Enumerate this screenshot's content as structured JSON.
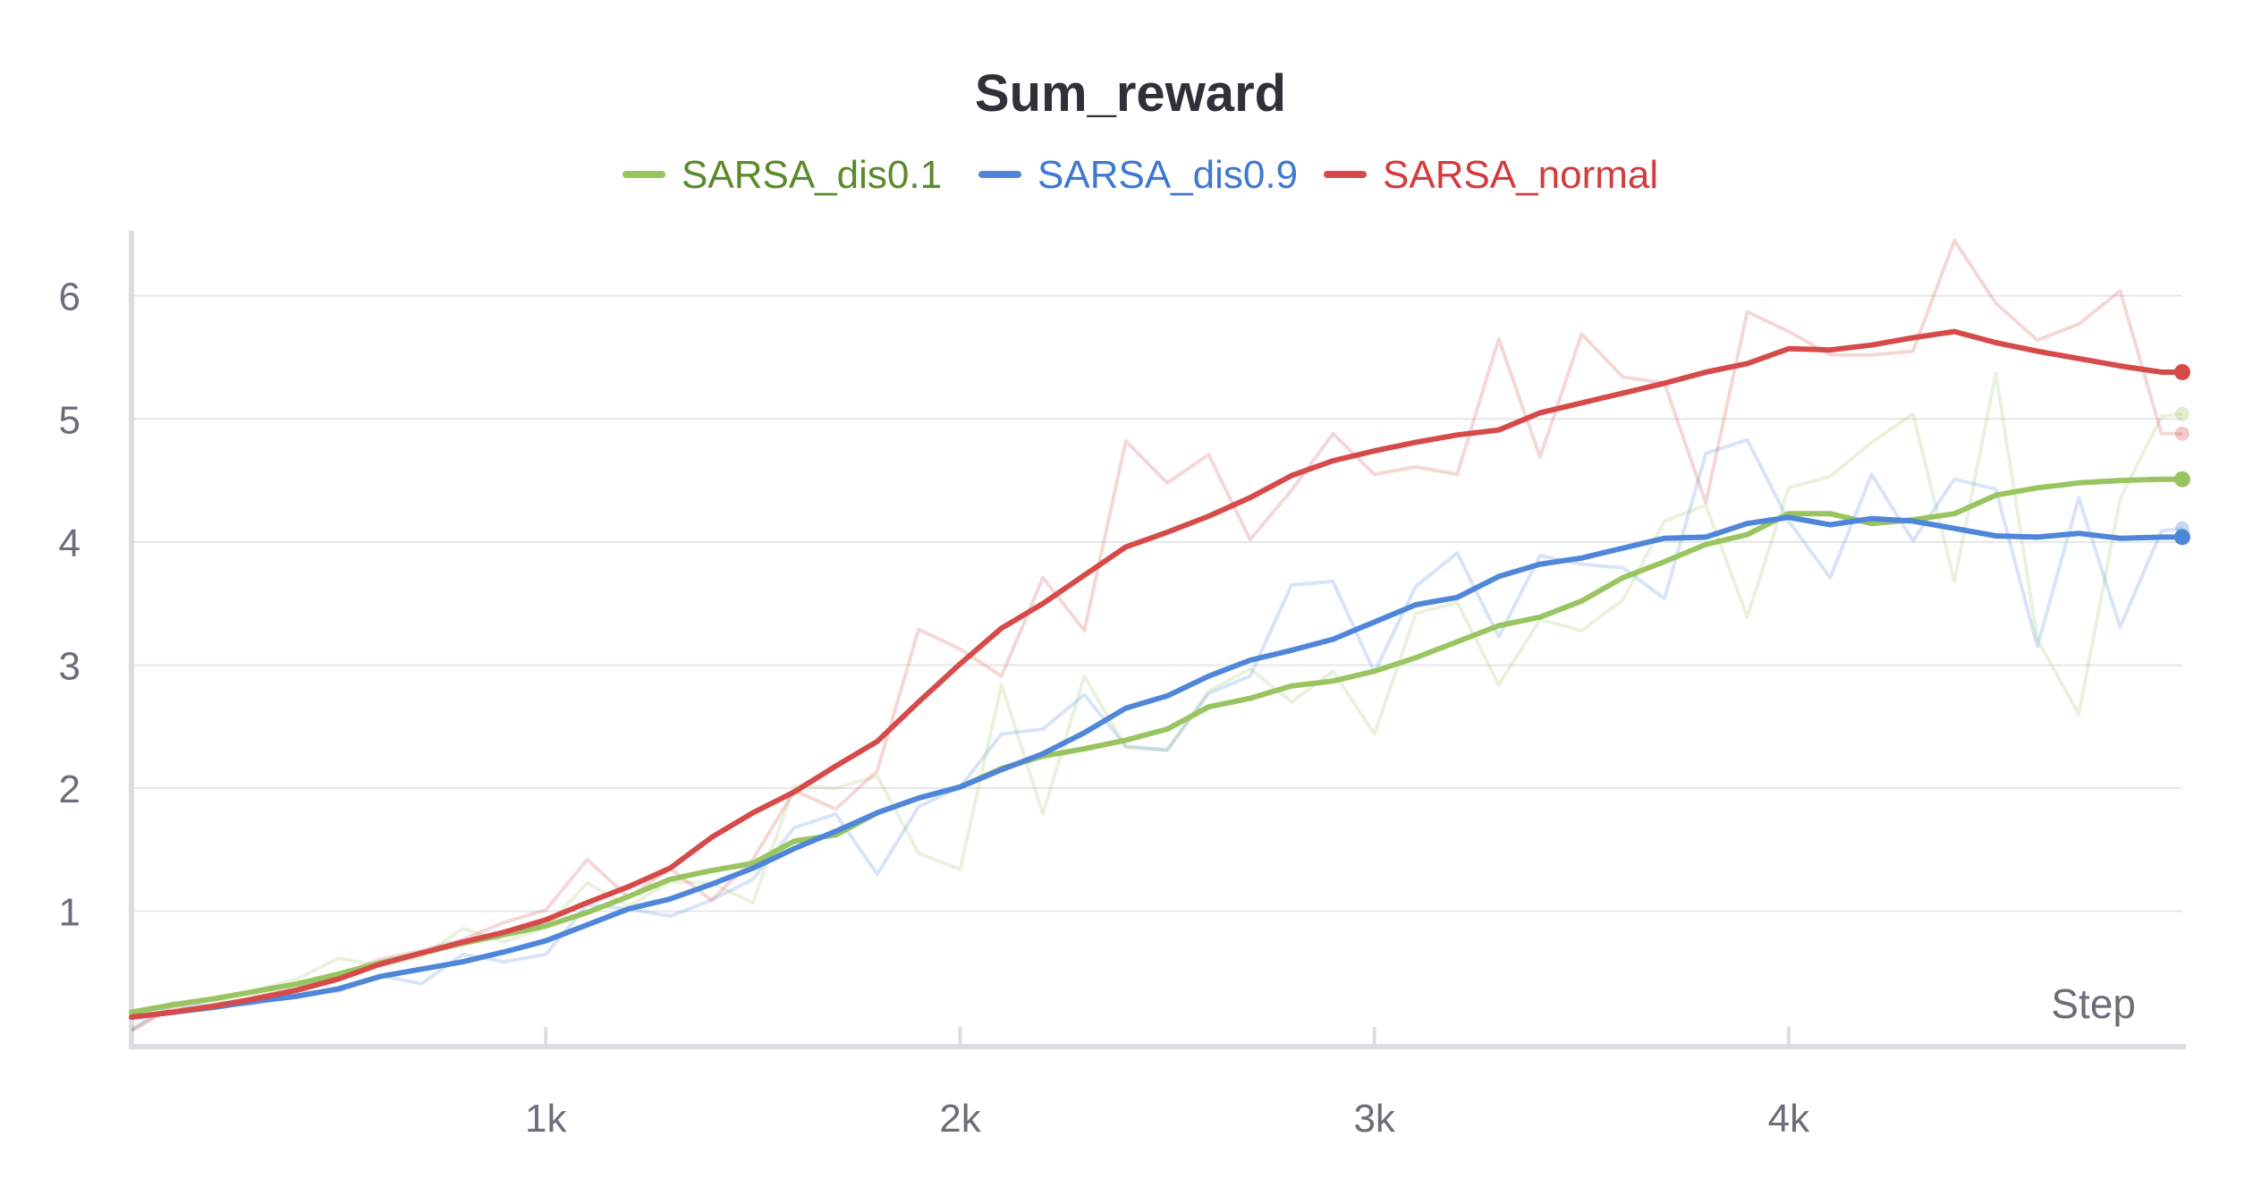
{
  "chart_data": {
    "type": "line",
    "title": "Sum_reward",
    "xlabel": "Step",
    "ylabel": "",
    "xlim": [
      0,
      4950
    ],
    "ylim": [
      -0.1,
      6.55
    ],
    "xticks": [
      1000,
      2000,
      3000,
      4000
    ],
    "xtick_labels": [
      "1k",
      "2k",
      "3k",
      "4k"
    ],
    "yticks": [
      1,
      2,
      3,
      4,
      5,
      6
    ],
    "ytick_labels": [
      "1",
      "2",
      "3",
      "4",
      "5",
      "6"
    ],
    "grid": true,
    "legend_position": "top-center",
    "x": [
      0,
      100,
      200,
      300,
      400,
      500,
      600,
      700,
      800,
      900,
      1000,
      1100,
      1200,
      1300,
      1400,
      1500,
      1600,
      1700,
      1800,
      1900,
      2000,
      2100,
      2200,
      2300,
      2400,
      2500,
      2600,
      2700,
      2800,
      2900,
      3000,
      3100,
      3200,
      3300,
      3400,
      3500,
      3600,
      3700,
      3800,
      3900,
      4000,
      4100,
      4200,
      4300,
      4400,
      4500,
      4600,
      4700,
      4800,
      4900,
      4950
    ],
    "series": [
      {
        "name": "SARSA_dis0.1",
        "color": "#99c560",
        "label_color": "#5b8a2a",
        "smoothed": [
          0.18,
          0.24,
          0.29,
          0.35,
          0.41,
          0.49,
          0.58,
          0.66,
          0.74,
          0.81,
          0.88,
          0.99,
          1.12,
          1.26,
          1.33,
          1.39,
          1.57,
          1.62,
          1.8,
          1.92,
          2.01,
          2.16,
          2.26,
          2.32,
          2.39,
          2.48,
          2.66,
          2.73,
          2.83,
          2.87,
          2.95,
          3.06,
          3.19,
          3.32,
          3.39,
          3.52,
          3.71,
          3.84,
          3.98,
          4.06,
          4.23,
          4.23,
          4.15,
          4.18,
          4.23,
          4.38,
          4.44,
          4.48,
          4.5,
          4.51,
          4.51
        ],
        "raw": [
          0.05,
          0.26,
          0.25,
          0.36,
          0.45,
          0.62,
          0.55,
          0.63,
          0.86,
          0.75,
          0.87,
          1.23,
          1.04,
          1.24,
          1.23,
          1.07,
          2.02,
          2.0,
          2.1,
          1.47,
          1.34,
          2.84,
          1.79,
          2.91,
          2.33,
          2.31,
          2.79,
          2.97,
          2.7,
          2.95,
          2.44,
          3.42,
          3.51,
          2.84,
          3.37,
          3.28,
          3.53,
          4.17,
          4.3,
          3.39,
          4.44,
          4.53,
          4.81,
          5.04,
          3.68,
          5.37,
          3.21,
          2.6,
          4.35,
          5.02,
          5.04
        ]
      },
      {
        "name": "SARSA_dis0.9",
        "color": "#4f86d9",
        "label_color": "#3f78cf",
        "smoothed": [
          0.14,
          0.18,
          0.22,
          0.27,
          0.31,
          0.37,
          0.47,
          0.53,
          0.59,
          0.67,
          0.76,
          0.89,
          1.02,
          1.1,
          1.22,
          1.35,
          1.51,
          1.65,
          1.8,
          1.92,
          2.01,
          2.15,
          2.28,
          2.45,
          2.65,
          2.75,
          2.91,
          3.04,
          3.12,
          3.21,
          3.35,
          3.49,
          3.55,
          3.72,
          3.82,
          3.87,
          3.95,
          4.03,
          4.04,
          4.15,
          4.2,
          4.14,
          4.19,
          4.17,
          4.11,
          4.05,
          4.04,
          4.07,
          4.03,
          4.04,
          4.04
        ],
        "raw": [
          0.03,
          0.24,
          0.23,
          0.25,
          0.34,
          0.35,
          0.48,
          0.41,
          0.65,
          0.59,
          0.65,
          1.05,
          1.02,
          0.96,
          1.09,
          1.26,
          1.68,
          1.79,
          1.3,
          1.85,
          2.01,
          2.44,
          2.48,
          2.76,
          2.34,
          2.31,
          2.77,
          2.91,
          3.65,
          3.68,
          2.94,
          3.64,
          3.91,
          3.23,
          3.89,
          3.82,
          3.79,
          3.54,
          4.72,
          4.83,
          4.17,
          3.71,
          4.55,
          4.01,
          4.51,
          4.43,
          3.15,
          4.36,
          3.31,
          4.09,
          4.11
        ]
      },
      {
        "name": "SARSA_normal",
        "color": "#d64a4a",
        "label_color": "#d23c3c",
        "smoothed": [
          0.14,
          0.18,
          0.23,
          0.29,
          0.36,
          0.45,
          0.57,
          0.66,
          0.75,
          0.83,
          0.93,
          1.07,
          1.2,
          1.35,
          1.6,
          1.8,
          1.97,
          2.18,
          2.38,
          2.7,
          3.01,
          3.3,
          3.5,
          3.73,
          3.96,
          4.08,
          4.21,
          4.36,
          4.54,
          4.66,
          4.74,
          4.81,
          4.87,
          4.91,
          5.05,
          5.13,
          5.21,
          5.29,
          5.38,
          5.45,
          5.57,
          5.56,
          5.6,
          5.66,
          5.71,
          5.62,
          5.55,
          5.49,
          5.43,
          5.38,
          5.38
        ],
        "raw": [
          0.03,
          0.22,
          0.21,
          0.31,
          0.37,
          0.48,
          0.61,
          0.68,
          0.77,
          0.91,
          1.01,
          1.42,
          1.11,
          1.35,
          1.09,
          1.42,
          1.98,
          1.83,
          2.14,
          3.29,
          3.13,
          2.91,
          3.71,
          3.28,
          4.82,
          4.48,
          4.71,
          4.02,
          4.42,
          4.88,
          4.55,
          4.61,
          4.55,
          5.65,
          4.69,
          5.69,
          5.34,
          5.29,
          4.32,
          5.87,
          5.71,
          5.52,
          5.52,
          5.55,
          6.45,
          5.94,
          5.64,
          5.77,
          6.04,
          4.88,
          4.88
        ]
      }
    ]
  }
}
